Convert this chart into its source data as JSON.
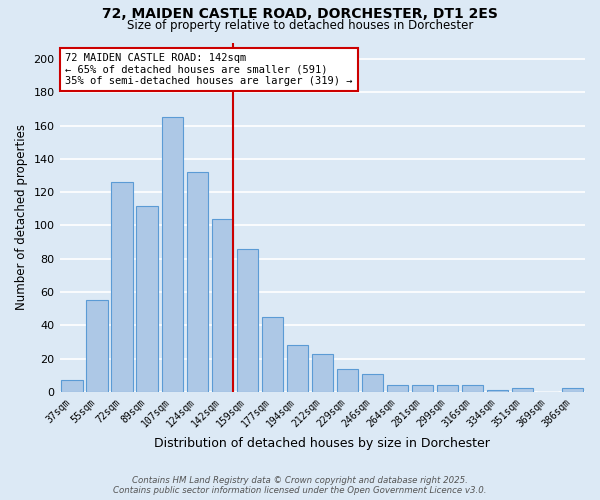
{
  "title1": "72, MAIDEN CASTLE ROAD, DORCHESTER, DT1 2ES",
  "title2": "Size of property relative to detached houses in Dorchester",
  "xlabel": "Distribution of detached houses by size in Dorchester",
  "ylabel": "Number of detached properties",
  "categories": [
    "37sqm",
    "55sqm",
    "72sqm",
    "89sqm",
    "107sqm",
    "124sqm",
    "142sqm",
    "159sqm",
    "177sqm",
    "194sqm",
    "212sqm",
    "229sqm",
    "246sqm",
    "264sqm",
    "281sqm",
    "299sqm",
    "316sqm",
    "334sqm",
    "351sqm",
    "369sqm",
    "386sqm"
  ],
  "values": [
    7,
    55,
    126,
    112,
    165,
    132,
    104,
    86,
    45,
    28,
    23,
    14,
    11,
    4,
    4,
    4,
    4,
    1,
    2,
    0,
    2
  ],
  "bar_color": "#adc8e6",
  "bar_edge_color": "#5b9bd5",
  "marker_index": 6,
  "annotation_title": "72 MAIDEN CASTLE ROAD: 142sqm",
  "annotation_line1": "← 65% of detached houses are smaller (591)",
  "annotation_line2": "35% of semi-detached houses are larger (319) →",
  "vline_color": "#cc0000",
  "background_color": "#dce9f5",
  "grid_color": "#ffffff",
  "ylim": [
    0,
    210
  ],
  "yticks": [
    0,
    20,
    40,
    60,
    80,
    100,
    120,
    140,
    160,
    180,
    200
  ],
  "footer1": "Contains HM Land Registry data © Crown copyright and database right 2025.",
  "footer2": "Contains public sector information licensed under the Open Government Licence v3.0."
}
